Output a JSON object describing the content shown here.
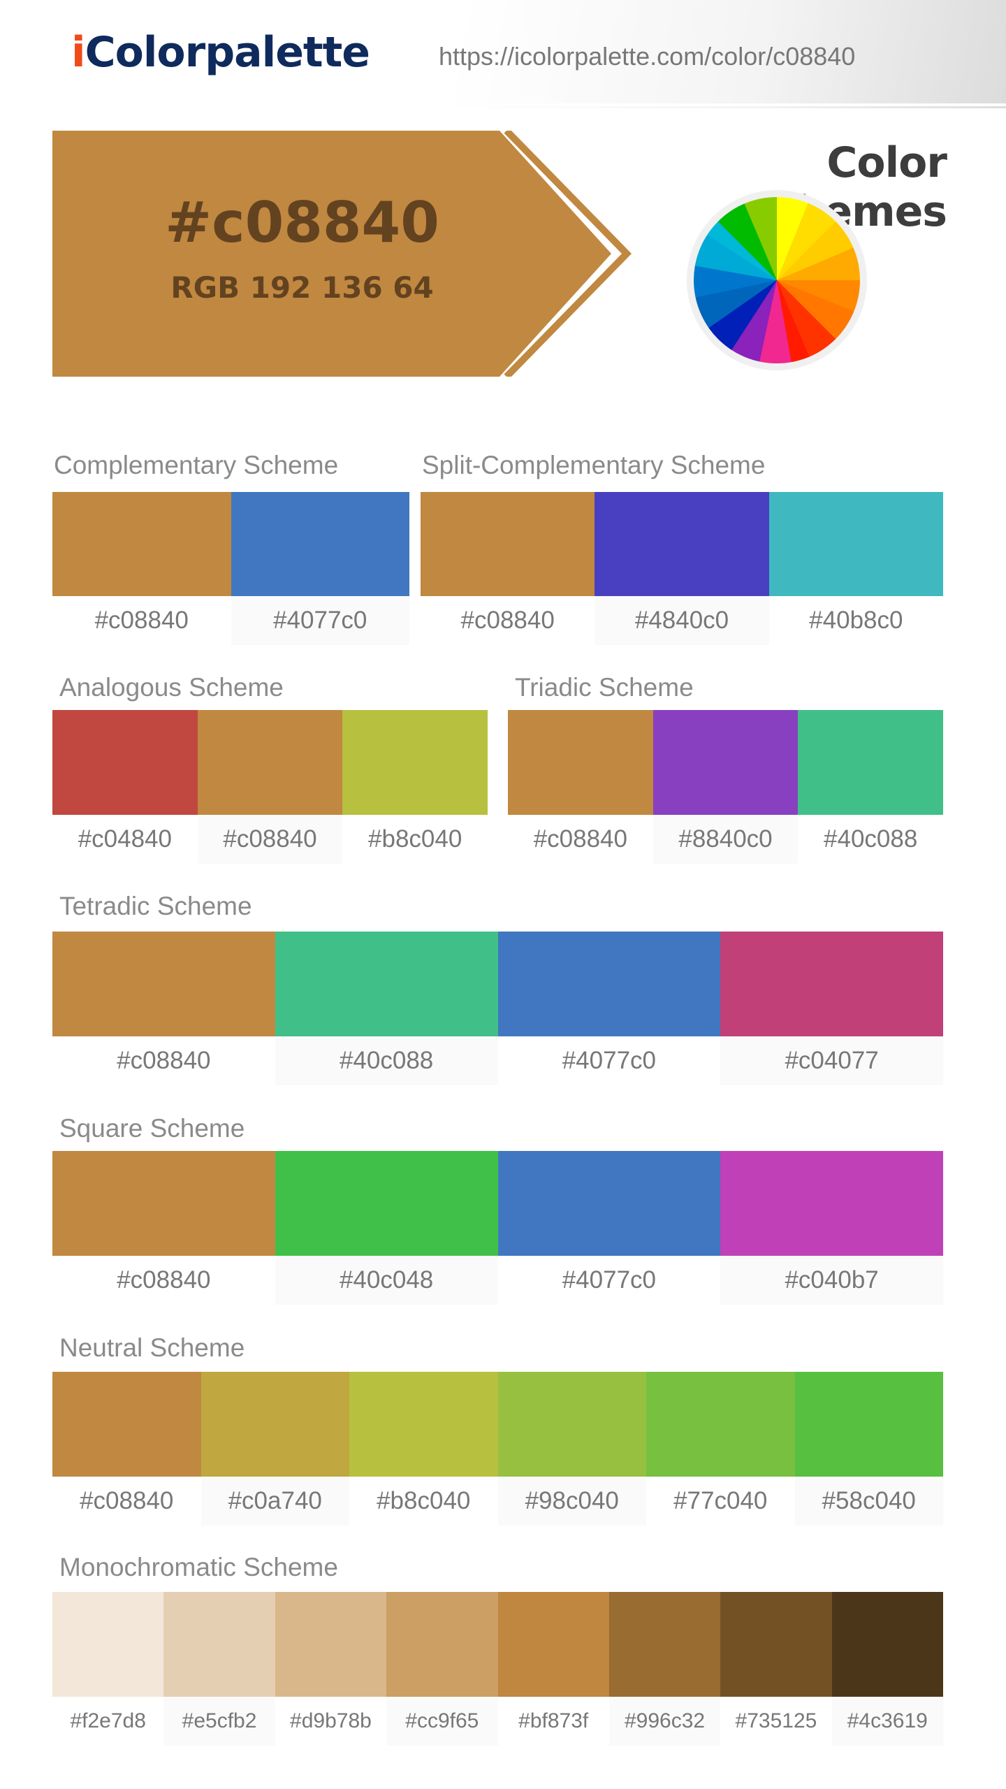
{
  "header": {
    "logo_prefix": "i",
    "logo_rest": "Colorpalette",
    "url": "https://icolorpalette.com/color/c08840"
  },
  "banner": {
    "hex": "#c08840",
    "rgb": "RGB 192 136 64",
    "color": "#c08840"
  },
  "color_schemes_title": "Color Schemes",
  "schemes": {
    "complementary": {
      "title": "Complementary Scheme",
      "colors": [
        "#c08840",
        "#4077c0"
      ]
    },
    "split": {
      "title": "Split-Complementary Scheme",
      "colors": [
        "#c08840",
        "#4840c0",
        "#40b8c0"
      ]
    },
    "analogous": {
      "title": "Analogous Scheme",
      "colors": [
        "#c04840",
        "#c08840",
        "#b8c040"
      ]
    },
    "triadic": {
      "title": "Triadic Scheme",
      "colors": [
        "#c08840",
        "#8840c0",
        "#40c088"
      ]
    },
    "tetradic": {
      "title": "Tetradic Scheme",
      "colors": [
        "#c08840",
        "#40c088",
        "#4077c0",
        "#c04077"
      ]
    },
    "square": {
      "title": "Square Scheme",
      "colors": [
        "#c08840",
        "#40c048",
        "#4077c0",
        "#c040b7"
      ]
    },
    "neutral": {
      "title": "Neutral Scheme",
      "colors": [
        "#c08840",
        "#c0a740",
        "#b8c040",
        "#98c040",
        "#77c040",
        "#58c040"
      ]
    },
    "monochromatic": {
      "title": "Monochromatic Scheme",
      "colors": [
        "#f2e7d8",
        "#e5cfb2",
        "#d9b78b",
        "#cc9f65",
        "#bf873f",
        "#996c32",
        "#735125",
        "#4c3619"
      ]
    }
  }
}
